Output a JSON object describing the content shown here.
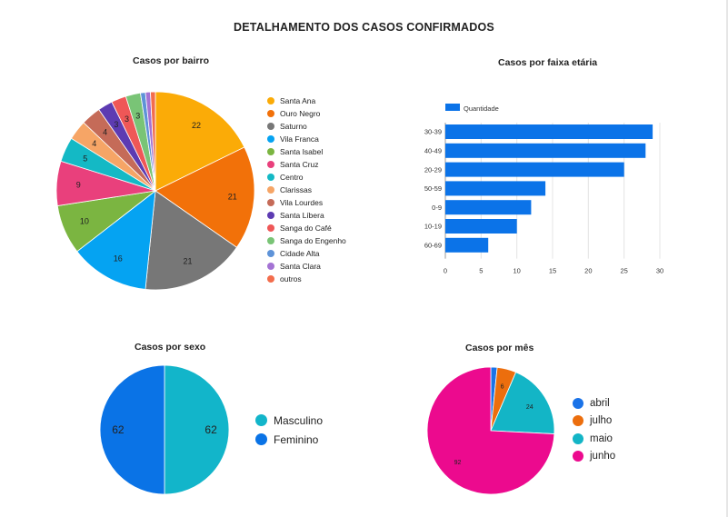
{
  "page": {
    "title": "DETALHAMENTO DOS CASOS CONFIRMADOS"
  },
  "chart_data": [
    {
      "id": "bairro",
      "type": "pie",
      "title": "Casos por bairro",
      "labels": [
        "Santa Ana",
        "Ouro Negro",
        "Saturno",
        "Vila Franca",
        "Santa Isabel",
        "Santa Cruz",
        "Centro",
        "Clarissas",
        "Vila Lourdes",
        "Santa Líbera",
        "Sanga do Café",
        "Sanga do Engenho",
        "Cidade Alta",
        "Santa Clara",
        "outros"
      ],
      "values": [
        22,
        21,
        21,
        16,
        10,
        9,
        5,
        4,
        4,
        3,
        3,
        3,
        1,
        1,
        1
      ],
      "colors": [
        "#fbab07",
        "#f27109",
        "#777777",
        "#05a3f2",
        "#7bb541",
        "#e9407c",
        "#14b9c5",
        "#f6a566",
        "#c56b58",
        "#5d3bb2",
        "#ef5757",
        "#79c476",
        "#5e93d8",
        "#a473d4",
        "#f36d4c"
      ],
      "data_labels": [
        "22",
        "21",
        "21",
        "16",
        "10",
        "9",
        "5",
        "4",
        "4",
        "3",
        "3",
        "3",
        "",
        "",
        ""
      ]
    },
    {
      "id": "faixa",
      "type": "bar",
      "orientation": "horizontal",
      "title": "Casos por faixa etária",
      "legend": "Quantidade",
      "color": "#0b73e8",
      "categories": [
        "30-39",
        "40-49",
        "20-29",
        "50-59",
        "0-9",
        "10-19",
        "60-69"
      ],
      "values": [
        29,
        28,
        25,
        14,
        12,
        10,
        6
      ],
      "xlim": [
        0,
        30
      ],
      "xticks": [
        "0",
        "5",
        "10",
        "15",
        "20",
        "25",
        "30"
      ]
    },
    {
      "id": "sexo",
      "type": "pie",
      "title": "Casos por sexo",
      "labels": [
        "Masculino",
        "Feminino"
      ],
      "values": [
        62,
        62
      ],
      "colors": [
        "#12b5ca",
        "#0a73e6"
      ],
      "data_labels": [
        "62",
        "62"
      ]
    },
    {
      "id": "mes",
      "type": "pie",
      "title": "Casos por mês",
      "labels": [
        "abril",
        "julho",
        "maio",
        "junho"
      ],
      "values": [
        2,
        6,
        24,
        92
      ],
      "colors": [
        "#1a73e8",
        "#ec6e0d",
        "#13b5c6",
        "#ec0a8e"
      ],
      "data_labels": [
        "",
        "6",
        "24",
        "92"
      ]
    }
  ]
}
